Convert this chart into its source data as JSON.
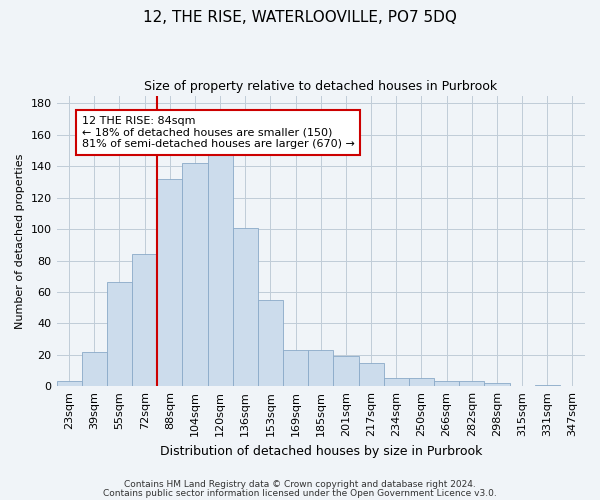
{
  "title": "12, THE RISE, WATERLOOVILLE, PO7 5DQ",
  "subtitle": "Size of property relative to detached houses in Purbrook",
  "xlabel": "Distribution of detached houses by size in Purbrook",
  "ylabel": "Number of detached properties",
  "categories": [
    "23sqm",
    "39sqm",
    "55sqm",
    "72sqm",
    "88sqm",
    "104sqm",
    "120sqm",
    "136sqm",
    "153sqm",
    "169sqm",
    "185sqm",
    "201sqm",
    "217sqm",
    "234sqm",
    "250sqm",
    "266sqm",
    "282sqm",
    "298sqm",
    "315sqm",
    "331sqm",
    "347sqm"
  ],
  "values": [
    3,
    22,
    66,
    84,
    132,
    142,
    148,
    101,
    55,
    23,
    23,
    19,
    15,
    5,
    5,
    3,
    3,
    2,
    0,
    1,
    0
  ],
  "bar_color": "#ccdcec",
  "bar_edge_color": "#8aaac8",
  "vline_color": "#cc0000",
  "vline_index": 4,
  "annotation_text": "12 THE RISE: 84sqm\n← 18% of detached houses are smaller (150)\n81% of semi-detached houses are larger (670) →",
  "annotation_box_color": "#ffffff",
  "annotation_box_edge": "#cc0000",
  "ylim": [
    0,
    185
  ],
  "yticks": [
    0,
    20,
    40,
    60,
    80,
    100,
    120,
    140,
    160,
    180
  ],
  "background_color": "#f0f4f8",
  "plot_bg_color": "#f0f4f8",
  "grid_color": "#c0ccd8",
  "footer1": "Contains HM Land Registry data © Crown copyright and database right 2024.",
  "footer2": "Contains public sector information licensed under the Open Government Licence v3.0.",
  "title_fontsize": 11,
  "subtitle_fontsize": 9,
  "xlabel_fontsize": 9,
  "ylabel_fontsize": 8,
  "tick_fontsize": 8,
  "footer_fontsize": 6.5
}
